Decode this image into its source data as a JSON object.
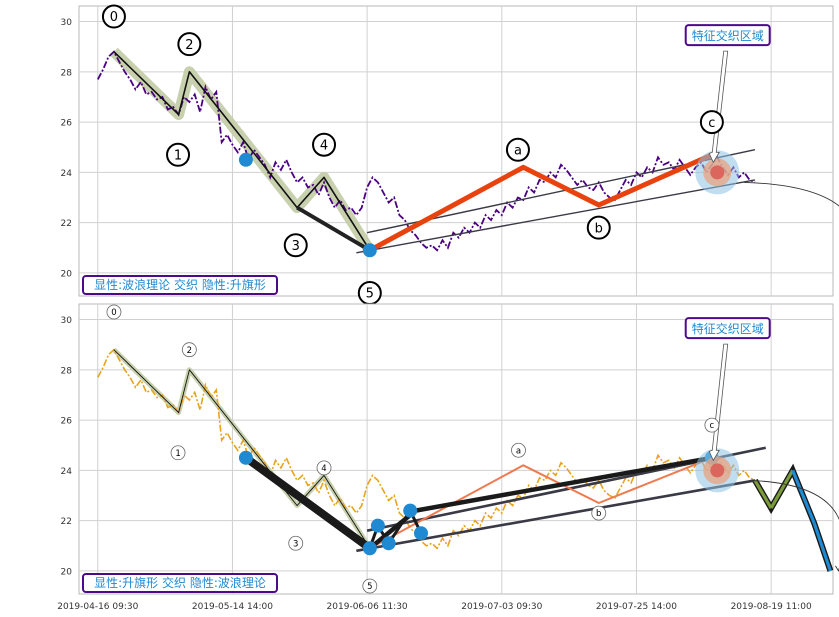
{
  "colors": {
    "panel_bg": "#ffffff",
    "grid": "#d0d0d0",
    "frame": "#b8b8b8",
    "price_top": "#4b0082",
    "price_bottom": "#e8a31c",
    "elliott_band": "#c2cca4",
    "abc": "#e8430e",
    "abc_light": "#ef7a50",
    "node": "#1f8ad2",
    "box_text": "#1f8ad2",
    "box_border": "#4b0a8a",
    "proj_fill": "#7a9a3c",
    "proj_fill2": "#1f8ad2"
  },
  "chart_data": [
    {
      "type": "line",
      "panel": "top",
      "ylim": [
        19.4,
        30.3
      ],
      "yticks": [
        "30",
        "28",
        "26",
        "24",
        "22",
        "20"
      ],
      "ytick_values": [
        30,
        28,
        26,
        24,
        22,
        20
      ],
      "xlim": [
        -4,
        270
      ],
      "price_series": [
        [
          0,
          27.7
        ],
        [
          2,
          28.1
        ],
        [
          4,
          28.6
        ],
        [
          6,
          28.8
        ],
        [
          8,
          28.4
        ],
        [
          10,
          28.0
        ],
        [
          12,
          27.7
        ],
        [
          14,
          27.3
        ],
        [
          16,
          27.6
        ],
        [
          18,
          27.1
        ],
        [
          20,
          27.2
        ],
        [
          22,
          26.9
        ],
        [
          24,
          27.0
        ],
        [
          26,
          26.5
        ],
        [
          28,
          26.6
        ],
        [
          30,
          26.3
        ],
        [
          32,
          27.0
        ],
        [
          34,
          26.8
        ],
        [
          36,
          27.1
        ],
        [
          38,
          26.4
        ],
        [
          40,
          27.4
        ],
        [
          42,
          26.9
        ],
        [
          44,
          27.2
        ],
        [
          46,
          25.2
        ],
        [
          48,
          25.5
        ],
        [
          50,
          25.1
        ],
        [
          52,
          24.8
        ],
        [
          54,
          25.2
        ],
        [
          56,
          24.5
        ],
        [
          58,
          24.9
        ],
        [
          60,
          24.6
        ],
        [
          62,
          24.3
        ],
        [
          64,
          23.8
        ],
        [
          66,
          24.4
        ],
        [
          68,
          24.1
        ],
        [
          70,
          24.5
        ],
        [
          72,
          24.0
        ],
        [
          74,
          23.6
        ],
        [
          76,
          23.8
        ],
        [
          78,
          23.4
        ],
        [
          80,
          23.5
        ],
        [
          82,
          23.1
        ],
        [
          84,
          23.6
        ],
        [
          86,
          23.0
        ],
        [
          88,
          22.6
        ],
        [
          90,
          22.9
        ],
        [
          92,
          22.5
        ],
        [
          94,
          22.6
        ],
        [
          96,
          22.3
        ],
        [
          98,
          22.6
        ],
        [
          100,
          23.4
        ],
        [
          102,
          23.8
        ],
        [
          104,
          23.6
        ],
        [
          106,
          23.2
        ],
        [
          108,
          22.8
        ],
        [
          110,
          23.0
        ],
        [
          112,
          22.3
        ],
        [
          114,
          22.1
        ],
        [
          116,
          21.7
        ],
        [
          118,
          21.5
        ],
        [
          120,
          21.2
        ],
        [
          122,
          21.0
        ],
        [
          124,
          21.1
        ],
        [
          126,
          20.9
        ],
        [
          128,
          21.3
        ],
        [
          130,
          21.0
        ],
        [
          132,
          21.6
        ],
        [
          134,
          21.4
        ],
        [
          136,
          21.8
        ],
        [
          138,
          21.6
        ],
        [
          140,
          22.0
        ],
        [
          142,
          21.8
        ],
        [
          144,
          22.3
        ],
        [
          146,
          22.1
        ],
        [
          148,
          22.5
        ],
        [
          150,
          22.3
        ],
        [
          152,
          22.8
        ],
        [
          154,
          22.6
        ],
        [
          156,
          23.0
        ],
        [
          158,
          22.9
        ],
        [
          160,
          23.4
        ],
        [
          162,
          23.2
        ],
        [
          164,
          23.7
        ],
        [
          166,
          23.6
        ],
        [
          168,
          24.0
        ],
        [
          170,
          23.8
        ],
        [
          172,
          24.3
        ],
        [
          174,
          24.1
        ],
        [
          176,
          23.8
        ],
        [
          178,
          23.5
        ],
        [
          180,
          23.7
        ],
        [
          182,
          23.4
        ],
        [
          184,
          23.3
        ],
        [
          186,
          23.6
        ],
        [
          188,
          23.2
        ],
        [
          190,
          23.0
        ],
        [
          192,
          22.9
        ],
        [
          194,
          23.3
        ],
        [
          196,
          23.7
        ],
        [
          198,
          23.5
        ],
        [
          200,
          24.0
        ],
        [
          202,
          23.8
        ],
        [
          204,
          24.2
        ],
        [
          206,
          24.0
        ],
        [
          208,
          24.6
        ],
        [
          210,
          24.3
        ],
        [
          212,
          24.4
        ],
        [
          214,
          24.1
        ],
        [
          216,
          24.5
        ],
        [
          218,
          24.2
        ],
        [
          220,
          23.9
        ],
        [
          222,
          24.2
        ],
        [
          224,
          24.4
        ],
        [
          226,
          24.0
        ],
        [
          228,
          24.3
        ],
        [
          230,
          24.6
        ],
        [
          232,
          24.2
        ],
        [
          234,
          23.9
        ],
        [
          236,
          24.2
        ],
        [
          238,
          23.8
        ],
        [
          240,
          24.0
        ],
        [
          242,
          23.7
        ],
        [
          244,
          23.6
        ]
      ],
      "elliott_wave": {
        "labels": [
          "0",
          "1",
          "2",
          "3",
          "4",
          "5"
        ],
        "points": [
          [
            6,
            28.8
          ],
          [
            30,
            26.3
          ],
          [
            34,
            28.0
          ],
          [
            74,
            22.6
          ],
          [
            84,
            23.8
          ],
          [
            101,
            20.9
          ]
        ],
        "label_offsets": [
          [
            -0.0,
            1.4
          ],
          [
            -0.2,
            -1.6
          ],
          [
            -0.0,
            1.1
          ],
          [
            -0.5,
            -1.5
          ],
          [
            -0.0,
            1.3
          ],
          [
            -0.0,
            -1.7
          ]
        ]
      },
      "abc_wave": {
        "labels": [
          "a",
          "b",
          "c"
        ],
        "points": [
          [
            101,
            20.9
          ],
          [
            158,
            24.2
          ],
          [
            186,
            22.7
          ],
          [
            228,
            24.7
          ]
        ],
        "label_offsets": [
          [
            -2.0,
            0.7
          ],
          [
            0.0,
            -0.9
          ],
          [
            0.0,
            1.3
          ]
        ]
      },
      "channel_lines": [
        [
          [
            100,
            21.6
          ],
          [
            244,
            24.9
          ]
        ],
        [
          [
            96,
            20.8
          ],
          [
            244,
            23.7
          ]
        ]
      ],
      "nodes": [
        [
          55,
          24.5
        ],
        [
          101,
          20.9
        ]
      ],
      "projection_arc": {
        "from": [
          240,
          23.6
        ],
        "to": [
          280,
          19.9
        ]
      },
      "feature_box": "特征交织区域",
      "feature_box_anchor": [
        222,
        29.3
      ],
      "highlight_at": [
        230,
        24.0
      ],
      "label_box": "显性:波浪理论 交织 隐性:升旗形"
    },
    {
      "type": "line",
      "panel": "bottom",
      "ylim": [
        19.4,
        30.3
      ],
      "yticks": [
        "30",
        "28",
        "26",
        "24",
        "22",
        "20"
      ],
      "ytick_values": [
        30,
        28,
        26,
        24,
        22,
        20
      ],
      "xlim": [
        -4,
        270
      ],
      "xticks": [
        "2019-04-16 09:30",
        "2019-05-14 14:00",
        "2019-06-06 11:30",
        "2019-07-03 09:30",
        "2019-07-25 14:00",
        "2019-08-19 11:00"
      ],
      "xtick_values": [
        0,
        50,
        100,
        150,
        200,
        250
      ],
      "price_series": [
        [
          0,
          27.7
        ],
        [
          2,
          28.1
        ],
        [
          4,
          28.6
        ],
        [
          6,
          28.8
        ],
        [
          8,
          28.4
        ],
        [
          10,
          28.0
        ],
        [
          12,
          27.7
        ],
        [
          14,
          27.3
        ],
        [
          16,
          27.6
        ],
        [
          18,
          27.1
        ],
        [
          20,
          27.2
        ],
        [
          22,
          26.9
        ],
        [
          24,
          27.0
        ],
        [
          26,
          26.5
        ],
        [
          28,
          26.6
        ],
        [
          30,
          26.3
        ],
        [
          32,
          27.0
        ],
        [
          34,
          26.8
        ],
        [
          36,
          27.1
        ],
        [
          38,
          26.4
        ],
        [
          40,
          27.4
        ],
        [
          42,
          26.9
        ],
        [
          44,
          27.2
        ],
        [
          46,
          25.2
        ],
        [
          48,
          25.5
        ],
        [
          50,
          25.1
        ],
        [
          52,
          24.8
        ],
        [
          54,
          25.2
        ],
        [
          56,
          24.5
        ],
        [
          58,
          24.9
        ],
        [
          60,
          24.6
        ],
        [
          62,
          24.3
        ],
        [
          64,
          23.8
        ],
        [
          66,
          24.4
        ],
        [
          68,
          24.1
        ],
        [
          70,
          24.5
        ],
        [
          72,
          24.0
        ],
        [
          74,
          23.6
        ],
        [
          76,
          23.8
        ],
        [
          78,
          23.4
        ],
        [
          80,
          23.5
        ],
        [
          82,
          23.1
        ],
        [
          84,
          23.6
        ],
        [
          86,
          23.0
        ],
        [
          88,
          22.6
        ],
        [
          90,
          22.9
        ],
        [
          92,
          22.5
        ],
        [
          94,
          22.6
        ],
        [
          96,
          22.3
        ],
        [
          98,
          22.6
        ],
        [
          100,
          23.4
        ],
        [
          102,
          23.8
        ],
        [
          104,
          23.6
        ],
        [
          106,
          23.2
        ],
        [
          108,
          22.8
        ],
        [
          110,
          23.0
        ],
        [
          112,
          22.3
        ],
        [
          114,
          22.1
        ],
        [
          116,
          21.7
        ],
        [
          118,
          21.5
        ],
        [
          120,
          21.2
        ],
        [
          122,
          21.0
        ],
        [
          124,
          21.1
        ],
        [
          126,
          20.9
        ],
        [
          128,
          21.3
        ],
        [
          130,
          21.0
        ],
        [
          132,
          21.6
        ],
        [
          134,
          21.4
        ],
        [
          136,
          21.8
        ],
        [
          138,
          21.6
        ],
        [
          140,
          22.0
        ],
        [
          142,
          21.8
        ],
        [
          144,
          22.3
        ],
        [
          146,
          22.1
        ],
        [
          148,
          22.5
        ],
        [
          150,
          22.3
        ],
        [
          152,
          22.8
        ],
        [
          154,
          22.6
        ],
        [
          156,
          23.0
        ],
        [
          158,
          22.9
        ],
        [
          160,
          23.4
        ],
        [
          162,
          23.2
        ],
        [
          164,
          23.7
        ],
        [
          166,
          23.6
        ],
        [
          168,
          24.0
        ],
        [
          170,
          23.8
        ],
        [
          172,
          24.3
        ],
        [
          174,
          24.1
        ],
        [
          176,
          23.8
        ],
        [
          178,
          23.5
        ],
        [
          180,
          23.7
        ],
        [
          182,
          23.4
        ],
        [
          184,
          23.3
        ],
        [
          186,
          23.6
        ],
        [
          188,
          23.2
        ],
        [
          190,
          23.0
        ],
        [
          192,
          22.9
        ],
        [
          194,
          23.3
        ],
        [
          196,
          23.7
        ],
        [
          198,
          23.5
        ],
        [
          200,
          24.0
        ],
        [
          202,
          23.8
        ],
        [
          204,
          24.2
        ],
        [
          206,
          24.0
        ],
        [
          208,
          24.6
        ],
        [
          210,
          24.3
        ],
        [
          212,
          24.4
        ],
        [
          214,
          24.1
        ],
        [
          216,
          24.5
        ],
        [
          218,
          24.2
        ],
        [
          220,
          23.9
        ],
        [
          222,
          24.2
        ],
        [
          224,
          24.4
        ],
        [
          226,
          24.0
        ],
        [
          228,
          24.3
        ],
        [
          230,
          24.6
        ],
        [
          232,
          24.2
        ],
        [
          234,
          23.9
        ],
        [
          236,
          24.2
        ],
        [
          238,
          23.8
        ],
        [
          240,
          24.0
        ],
        [
          242,
          23.7
        ],
        [
          244,
          23.6
        ]
      ],
      "elliott_wave": {
        "labels": [
          "0",
          "1",
          "2",
          "3",
          "4",
          "5"
        ],
        "points": [
          [
            6,
            28.8
          ],
          [
            30,
            26.3
          ],
          [
            34,
            28.0
          ],
          [
            74,
            22.6
          ],
          [
            84,
            23.8
          ],
          [
            101,
            20.9
          ]
        ],
        "label_offsets": [
          [
            -0.0,
            1.5
          ],
          [
            -0.2,
            -1.6
          ],
          [
            -0.0,
            0.8
          ],
          [
            -0.5,
            -1.5
          ],
          [
            -0.0,
            0.3
          ],
          [
            -0.0,
            -1.5
          ]
        ]
      },
      "abc_wave": {
        "labels": [
          "a",
          "b",
          "c"
        ],
        "points": [
          [
            101,
            20.9
          ],
          [
            158,
            24.2
          ],
          [
            186,
            22.7
          ],
          [
            228,
            24.5
          ]
        ],
        "label_offsets": [
          [
            -1.8,
            0.6
          ],
          [
            0.0,
            -0.4
          ],
          [
            0.0,
            1.3
          ]
        ]
      },
      "thick_legs": [
        [
          [
            55,
            24.5
          ],
          [
            101,
            20.9
          ]
        ],
        [
          [
            101,
            20.9
          ],
          [
            118,
            22.4
          ],
          [
            228,
            24.5
          ]
        ]
      ],
      "pennant_legs": [
        [
          101,
          20.9
        ],
        [
          104,
          21.8
        ],
        [
          108,
          21.1
        ],
        [
          116,
          22.4
        ],
        [
          120,
          21.5
        ]
      ],
      "channel_lines": [
        [
          [
            100,
            21.6
          ],
          [
            248,
            24.9
          ]
        ],
        [
          [
            96,
            20.8
          ],
          [
            244,
            23.6
          ]
        ]
      ],
      "nodes": [
        [
          55,
          24.5
        ],
        [
          101,
          20.9
        ],
        [
          104,
          21.8
        ],
        [
          108,
          21.1
        ],
        [
          116,
          22.4
        ],
        [
          120,
          21.5
        ],
        [
          228,
          24.5
        ]
      ],
      "projection_zigzag": [
        [
          244,
          23.6
        ],
        [
          250,
          22.5
        ],
        [
          258,
          24.0
        ],
        [
          266,
          21.9
        ],
        [
          272,
          20.0
        ]
      ],
      "projection_arc": {
        "from": [
          242,
          23.6
        ],
        "to": [
          275,
          20.0
        ]
      },
      "feature_box": "特征交织区域",
      "feature_box_anchor": [
        222,
        29.5
      ],
      "highlight_at": [
        230,
        24.0
      ],
      "label_box": "显性:升旗形 交织 隐性:波浪理论"
    }
  ]
}
